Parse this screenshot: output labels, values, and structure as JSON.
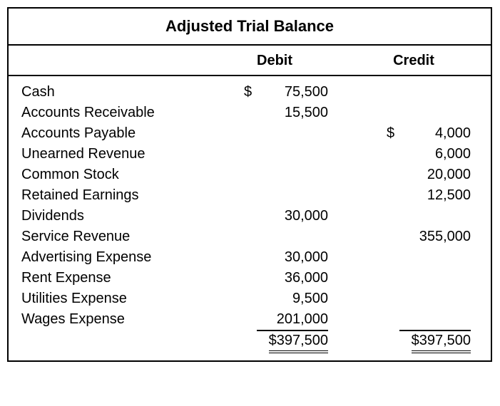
{
  "title": "Adjusted Trial Balance",
  "columns": {
    "debit": "Debit",
    "credit": "Credit"
  },
  "currency_symbol": "$",
  "rows": [
    {
      "account": "Cash",
      "debit": "75,500",
      "debit_currency": true,
      "credit": ""
    },
    {
      "account": "Accounts Receivable",
      "debit": "15,500",
      "credit": ""
    },
    {
      "account": "Accounts Payable",
      "debit": "",
      "credit": "4,000",
      "credit_currency": true
    },
    {
      "account": "Unearned Revenue",
      "debit": "",
      "credit": "6,000"
    },
    {
      "account": "Common Stock",
      "debit": "",
      "credit": "20,000"
    },
    {
      "account": "Retained Earnings",
      "debit": "",
      "credit": "12,500"
    },
    {
      "account": "Dividends",
      "debit": "30,000",
      "credit": ""
    },
    {
      "account": "Service Revenue",
      "debit": "",
      "credit": "355,000"
    },
    {
      "account": "Advertising Expense",
      "debit": "30,000",
      "credit": ""
    },
    {
      "account": "Rent Expense",
      "debit": "36,000",
      "credit": ""
    },
    {
      "account": "Utilities Expense",
      "debit": "9,500",
      "credit": ""
    },
    {
      "account": "Wages Expense",
      "debit": "201,000",
      "credit": "",
      "last_before_total": true
    }
  ],
  "totals": {
    "debit": "397,500",
    "credit": "397,500"
  },
  "style": {
    "font_family": "Arial, sans-serif",
    "title_fontsize": 22,
    "header_fontsize": 20,
    "body_fontsize": 20,
    "border_color": "#000000",
    "background_color": "#ffffff",
    "text_color": "#000000"
  }
}
